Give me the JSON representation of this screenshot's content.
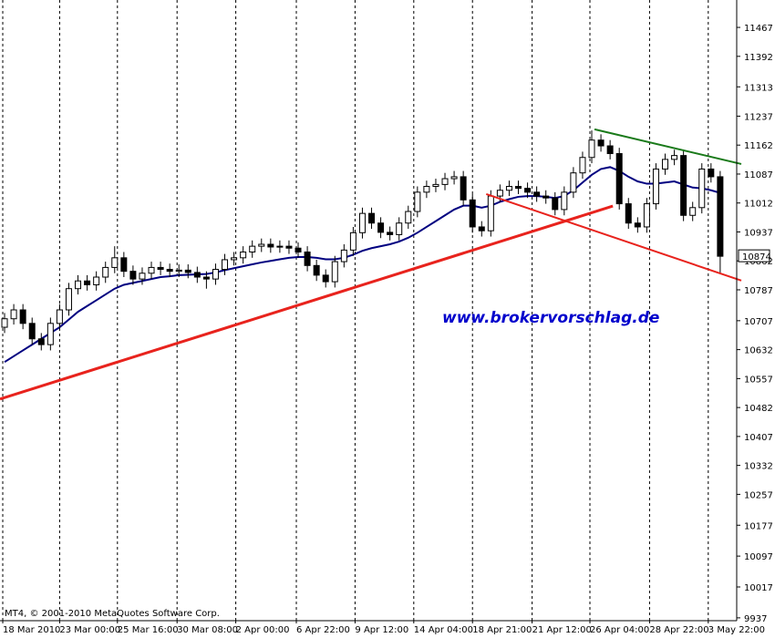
{
  "chart_data": {
    "type": "candlestick",
    "watermark": "www.brokervorschlag.de",
    "footer": "MT4, © 2001-2010 MetaQuotes Software Corp.",
    "ylim": [
      9932,
      11538
    ],
    "yticks": [
      11467,
      11392,
      11313,
      11237,
      11162,
      11087,
      11012,
      10937,
      10862,
      10787,
      10707,
      10632,
      10557,
      10482,
      10407,
      10332,
      10257,
      10177,
      10097,
      10017,
      9937
    ],
    "xlim": [
      -0.5,
      79.8
    ],
    "xticks": [
      {
        "value": -0.2,
        "label": "18 Mar 2010"
      },
      {
        "value": 6,
        "label": "23 Mar 00:00"
      },
      {
        "value": 12.3,
        "label": "25 Mar 16:00"
      },
      {
        "value": 18.8,
        "label": "30 Mar 08:00"
      },
      {
        "value": 25.2,
        "label": "2 Apr 00:00"
      },
      {
        "value": 31.8,
        "label": "6 Apr 22:00"
      },
      {
        "value": 38.2,
        "label": "9 Apr 12:00"
      },
      {
        "value": 44.6,
        "label": "14 Apr 04:00"
      },
      {
        "value": 51,
        "label": "18 Apr 21:00"
      },
      {
        "value": 57.5,
        "label": "21 Apr 12:00"
      },
      {
        "value": 63.8,
        "label": "26 Apr 04:00"
      },
      {
        "value": 70.3,
        "label": "28 Apr 22:00"
      },
      {
        "value": 76.7,
        "label": "3 May 22:00"
      }
    ],
    "grid": true,
    "up_color": "#ffffff",
    "down_color": "#000000",
    "candles": [
      [
        10690,
        10727,
        10675,
        10712
      ],
      [
        10712,
        10750,
        10697,
        10735
      ],
      [
        10735,
        10750,
        10685,
        10700
      ],
      [
        10700,
        10715,
        10645,
        10660
      ],
      [
        10660,
        10675,
        10630,
        10645
      ],
      [
        10645,
        10715,
        10630,
        10700
      ],
      [
        10700,
        10750,
        10685,
        10735
      ],
      [
        10735,
        10805,
        10720,
        10790
      ],
      [
        10790,
        10825,
        10775,
        10810
      ],
      [
        10810,
        10825,
        10785,
        10800
      ],
      [
        10800,
        10835,
        10785,
        10820
      ],
      [
        10820,
        10860,
        10805,
        10845
      ],
      [
        10845,
        10900,
        10830,
        10870
      ],
      [
        10870,
        10885,
        10820,
        10835
      ],
      [
        10835,
        10850,
        10800,
        10815
      ],
      [
        10815,
        10845,
        10800,
        10830
      ],
      [
        10830,
        10860,
        10815,
        10845
      ],
      [
        10845,
        10860,
        10825,
        10840
      ],
      [
        10840,
        10855,
        10820,
        10835
      ],
      [
        10835,
        10853,
        10820,
        10838
      ],
      [
        10838,
        10853,
        10817,
        10832
      ],
      [
        10832,
        10847,
        10805,
        10820
      ],
      [
        10820,
        10835,
        10790,
        10815
      ],
      [
        10815,
        10855,
        10800,
        10840
      ],
      [
        10840,
        10880,
        10825,
        10865
      ],
      [
        10865,
        10885,
        10850,
        10870
      ],
      [
        10870,
        10900,
        10855,
        10885
      ],
      [
        10885,
        10915,
        10870,
        10900
      ],
      [
        10900,
        10920,
        10885,
        10905
      ],
      [
        10905,
        10920,
        10883,
        10898
      ],
      [
        10898,
        10915,
        10883,
        10900
      ],
      [
        10900,
        10915,
        10880,
        10895
      ],
      [
        10895,
        10910,
        10870,
        10885
      ],
      [
        10885,
        10900,
        10835,
        10850
      ],
      [
        10850,
        10865,
        10810,
        10825
      ],
      [
        10825,
        10840,
        10793,
        10808
      ],
      [
        10808,
        10875,
        10793,
        10860
      ],
      [
        10860,
        10905,
        10845,
        10890
      ],
      [
        10890,
        10950,
        10875,
        10935
      ],
      [
        10935,
        11000,
        10920,
        10985
      ],
      [
        10985,
        11000,
        10945,
        10960
      ],
      [
        10960,
        10975,
        10921,
        10936
      ],
      [
        10936,
        10951,
        10915,
        10930
      ],
      [
        10930,
        10975,
        10915,
        10960
      ],
      [
        10960,
        11005,
        10945,
        10990
      ],
      [
        10990,
        11055,
        10975,
        11040
      ],
      [
        11040,
        11070,
        11025,
        11055
      ],
      [
        11055,
        11075,
        11040,
        11060
      ],
      [
        11060,
        11090,
        11045,
        11075
      ],
      [
        11075,
        11095,
        11060,
        11080
      ],
      [
        11080,
        11095,
        11005,
        11020
      ],
      [
        11020,
        11035,
        10935,
        10950
      ],
      [
        10950,
        10965,
        10925,
        10940
      ],
      [
        10940,
        11045,
        10925,
        11030
      ],
      [
        11030,
        11060,
        11015,
        11045
      ],
      [
        11045,
        11070,
        11030,
        11055
      ],
      [
        11055,
        11070,
        11035,
        11050
      ],
      [
        11050,
        11065,
        11025,
        11040
      ],
      [
        11040,
        11055,
        11015,
        11030
      ],
      [
        11030,
        11045,
        11010,
        11025
      ],
      [
        11025,
        11040,
        10980,
        10995
      ],
      [
        10995,
        11055,
        10980,
        11040
      ],
      [
        11040,
        11105,
        11025,
        11090
      ],
      [
        11090,
        11145,
        11075,
        11130
      ],
      [
        11130,
        11200,
        11115,
        11175
      ],
      [
        11175,
        11190,
        11145,
        11160
      ],
      [
        11160,
        11175,
        11125,
        11140
      ],
      [
        11140,
        11155,
        10995,
        11010
      ],
      [
        11010,
        11025,
        10945,
        10960
      ],
      [
        10960,
        10975,
        10935,
        10950
      ],
      [
        10950,
        11025,
        10935,
        11010
      ],
      [
        11010,
        11115,
        10995,
        11100
      ],
      [
        11100,
        11140,
        11085,
        11125
      ],
      [
        11125,
        11150,
        11110,
        11135
      ],
      [
        11135,
        11150,
        10965,
        10980
      ],
      [
        10980,
        11015,
        10965,
        11000
      ],
      [
        11000,
        11115,
        10985,
        11100
      ],
      [
        11100,
        11115,
        11065,
        11080
      ],
      [
        11080,
        11095,
        10830,
        10874
      ]
    ],
    "series": [
      {
        "color": "#000080",
        "values": [
          10600,
          10615,
          10630,
          10645,
          10660,
          10675,
          10690,
          10710,
          10730,
          10745,
          10760,
          10775,
          10790,
          10800,
          10805,
          10810,
          10815,
          10820,
          10822,
          10825,
          10826,
          10827,
          10828,
          10832,
          10838,
          10843,
          10848,
          10853,
          10858,
          10862,
          10866,
          10870,
          10872,
          10872,
          10870,
          10866,
          10866,
          10870,
          10878,
          10888,
          10895,
          10900,
          10905,
          10912,
          10922,
          10935,
          10950,
          10965,
          10980,
          10995,
          11005,
          11005,
          11000,
          11005,
          11015,
          11022,
          11028,
          11030,
          11030,
          11028,
          11025,
          11030,
          11045,
          11065,
          11085,
          11100,
          11105,
          11095,
          11080,
          11068,
          11062,
          11062,
          11065,
          11068,
          11060,
          11052,
          11050,
          11045,
          11038
        ]
      }
    ],
    "trendlines": [
      {
        "color": "#e8231d",
        "x": [
          -0.5,
          66.3
        ],
        "y": [
          10504,
          11004
        ]
      },
      {
        "color": "#e8231d",
        "x": [
          52.5,
          80.3
        ],
        "y": [
          11035,
          10811
        ]
      },
      {
        "color": "#1a7a1a",
        "x": [
          64.3,
          80.3
        ],
        "y": [
          11203,
          11113
        ]
      }
    ]
  }
}
